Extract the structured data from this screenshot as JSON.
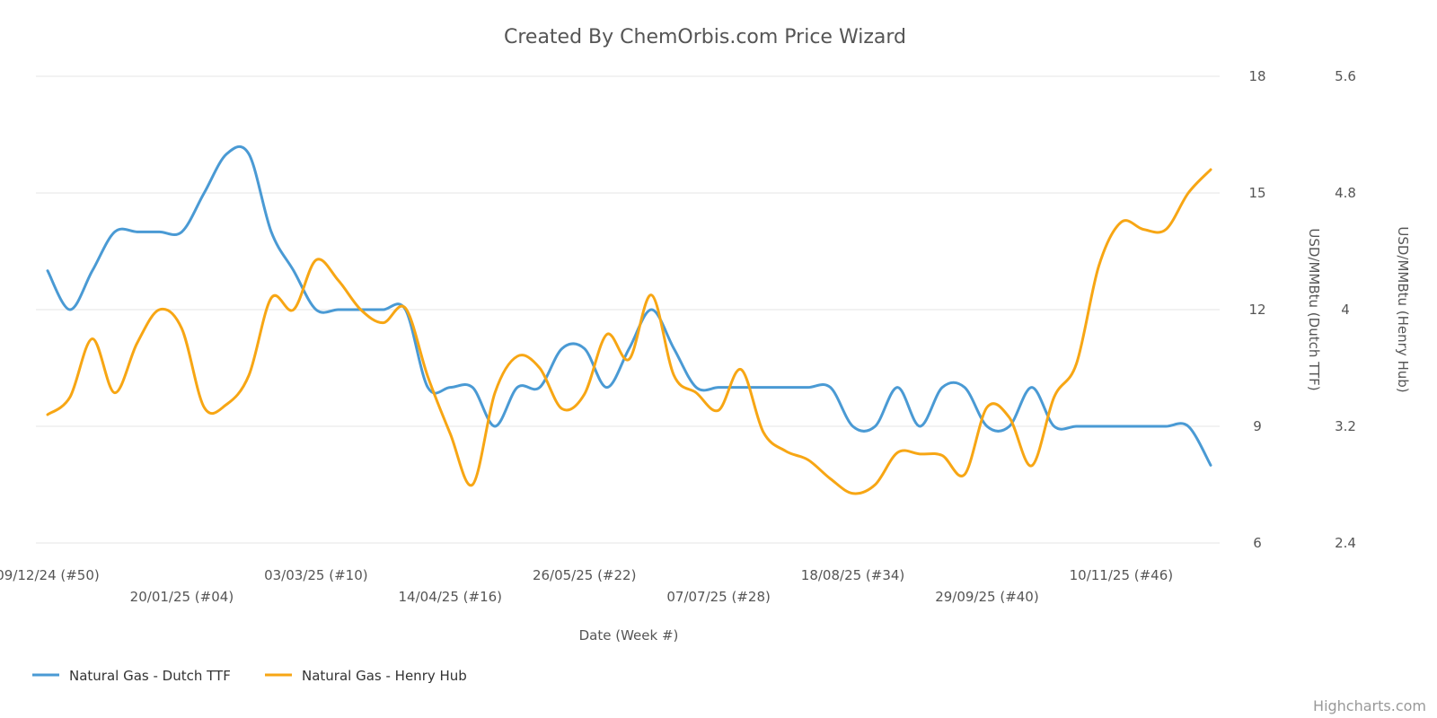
{
  "chart_data": {
    "type": "line",
    "title": "Created By ChemOrbis.com Price Wizard",
    "xlabel": "Date (Week #)",
    "x_ticks": [
      {
        "label": "09/12/24 (#50)",
        "i": 0
      },
      {
        "label": "20/01/25 (#04)",
        "i": 6
      },
      {
        "label": "03/03/25 (#10)",
        "i": 12
      },
      {
        "label": "14/04/25 (#16)",
        "i": 18
      },
      {
        "label": "26/05/25 (#22)",
        "i": 24
      },
      {
        "label": "07/07/25 (#28)",
        "i": 30
      },
      {
        "label": "18/08/25 (#34)",
        "i": 36
      },
      {
        "label": "29/09/25 (#40)",
        "i": 42
      },
      {
        "label": "10/11/25 (#46)",
        "i": 48
      }
    ],
    "y_axes": [
      {
        "id": "left",
        "label": "USD/MMBtu (Dutch TTF)",
        "min": 6,
        "max": 18,
        "ticks": [
          "6",
          "9",
          "12",
          "15",
          "18"
        ]
      },
      {
        "id": "right",
        "label": "USD/MMBtu (Henry Hub)",
        "min": 2.4,
        "max": 5.6,
        "ticks": [
          "2.4",
          "3.2",
          "4",
          "4.8",
          "5.6"
        ]
      }
    ],
    "series": [
      {
        "name": "Natural Gas - Dutch TTF",
        "axis": "left",
        "color": "#4a9ad4",
        "values": [
          13,
          12,
          13,
          14,
          14,
          14,
          14,
          15,
          16,
          16,
          14,
          13,
          12,
          12,
          12,
          12,
          12,
          10,
          10,
          10,
          9,
          10,
          10,
          11,
          11,
          10,
          11,
          12,
          11,
          10,
          10,
          10,
          10,
          10,
          10,
          10,
          9,
          9,
          10,
          9,
          10,
          10,
          9,
          9,
          10,
          9,
          9,
          9,
          9,
          9,
          9,
          9,
          8
        ]
      },
      {
        "name": "Natural Gas - Henry Hub",
        "axis": "right",
        "color": "#f7a614",
        "values": [
          3.28,
          3.4,
          3.8,
          3.43,
          3.77,
          4,
          3.87,
          3.33,
          3.35,
          3.55,
          4.08,
          4,
          4.34,
          4.2,
          4,
          3.91,
          4.01,
          3.54,
          3.15,
          2.8,
          3.43,
          3.68,
          3.6,
          3.32,
          3.42,
          3.83,
          3.66,
          4.1,
          3.55,
          3.43,
          3.31,
          3.59,
          3.16,
          3.03,
          2.97,
          2.84,
          2.74,
          2.8,
          3.02,
          3.01,
          3,
          2.87,
          3.33,
          3.26,
          2.93,
          3.4,
          3.63,
          4.3,
          4.6,
          4.55,
          4.55,
          4.8,
          4.96
        ]
      }
    ],
    "legend_position": "bottom-left",
    "grid": true
  },
  "credit": "Highcharts.com"
}
